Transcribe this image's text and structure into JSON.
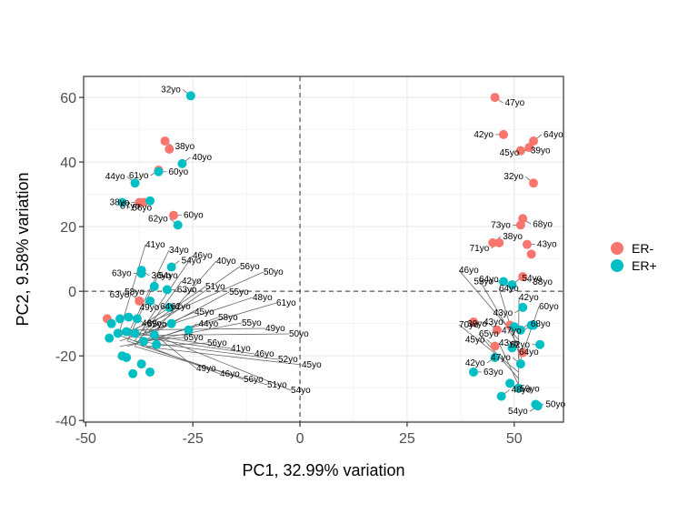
{
  "chart_data": {
    "type": "scatter",
    "xlabel": "PC1, 32.99% variation",
    "ylabel": "PC2, 9.58% variation",
    "xlim": [
      -50.5,
      61.5
    ],
    "ylim": [
      -40.5,
      66.5
    ],
    "xticks": [
      -50,
      -25,
      0,
      25,
      50
    ],
    "yticks": [
      -40,
      -20,
      0,
      20,
      40,
      60
    ],
    "xtick_labels": [
      "-50",
      "-25",
      "0",
      "25",
      "50"
    ],
    "ytick_labels": [
      "-40",
      "-20",
      "0",
      "20",
      "40",
      "60"
    ],
    "reference_lines": {
      "x": 0,
      "y": 0,
      "style": "dashed"
    },
    "grid": true,
    "legend_position": "right",
    "legend": [
      {
        "label": "ER-",
        "color": "#F8766D"
      },
      {
        "label": "ER+",
        "color": "#00BFC4"
      }
    ],
    "points": [
      {
        "x": -25.5,
        "y": 60.5,
        "group": "ER+",
        "label": "32yo"
      },
      {
        "x": -31.5,
        "y": 46.5,
        "group": "ER-",
        "label": "38yo"
      },
      {
        "x": -30.5,
        "y": 44,
        "group": "ER-",
        "label": ""
      },
      {
        "x": -27.5,
        "y": 39.5,
        "group": "ER+",
        "label": "40yo"
      },
      {
        "x": -33,
        "y": 37.5,
        "group": "ER-",
        "label": "61yo"
      },
      {
        "x": -33,
        "y": 37,
        "group": "ER+",
        "label": "60yo"
      },
      {
        "x": -38.5,
        "y": 33.5,
        "group": "ER+",
        "label": "44yo"
      },
      {
        "x": -41.5,
        "y": 27.5,
        "group": "ER+",
        "label": "56yo"
      },
      {
        "x": -37.5,
        "y": 27.5,
        "group": "ER-",
        "label": "38yo"
      },
      {
        "x": -36.5,
        "y": 27.5,
        "group": "ER-",
        "label": ""
      },
      {
        "x": -35,
        "y": 28,
        "group": "ER+",
        "label": "57yo"
      },
      {
        "x": -29.5,
        "y": 23.5,
        "group": "ER-",
        "label": "60yo"
      },
      {
        "x": -28.5,
        "y": 20.5,
        "group": "ER+",
        "label": "62yo"
      },
      {
        "x": -37,
        "y": 6.5,
        "group": "ER+",
        "label": "36yo"
      },
      {
        "x": -37,
        "y": 5.5,
        "group": "ER+",
        "label": "63yo"
      },
      {
        "x": -30,
        "y": 7.5,
        "group": "ER+",
        "label": "54yo"
      },
      {
        "x": -34,
        "y": 1.5,
        "group": "ER+",
        "label": "58yo"
      },
      {
        "x": -31,
        "y": 0.5,
        "group": "ER+",
        "label": "63yo"
      },
      {
        "x": -37.5,
        "y": -3,
        "group": "ER-",
        "label": "63yo"
      },
      {
        "x": -35,
        "y": -3,
        "group": "ER+",
        "label": "64yo"
      },
      {
        "x": -30.5,
        "y": -5,
        "group": "ER+",
        "label": "49yo"
      },
      {
        "x": -45,
        "y": -8.5,
        "group": "ER-",
        "label": ""
      },
      {
        "x": -44,
        "y": -10,
        "group": "ER+",
        "label": ""
      },
      {
        "x": -42,
        "y": -8.5,
        "group": "ER+",
        "label": ""
      },
      {
        "x": -40,
        "y": -8,
        "group": "ER+",
        "label": ""
      },
      {
        "x": -38,
        "y": -8.5,
        "group": "ER+",
        "label": "65yo"
      },
      {
        "x": -30,
        "y": -10,
        "group": "ER+",
        "label": "46yo"
      },
      {
        "x": -26,
        "y": -12,
        "group": "ER+",
        "label": "44yo"
      },
      {
        "x": -34,
        "y": -13.5,
        "group": "ER+",
        "label": ""
      },
      {
        "x": -44.5,
        "y": -14.5,
        "group": "ER+",
        "label": ""
      },
      {
        "x": -42.5,
        "y": -13,
        "group": "ER+",
        "label": ""
      },
      {
        "x": -40.5,
        "y": -12.5,
        "group": "ER+",
        "label": ""
      },
      {
        "x": -38.5,
        "y": -13,
        "group": "ER+",
        "label": ""
      },
      {
        "x": -36.5,
        "y": -15.5,
        "group": "ER+",
        "label": ""
      },
      {
        "x": -33.5,
        "y": -16.5,
        "group": "ER+",
        "label": ""
      },
      {
        "x": -41.5,
        "y": -20,
        "group": "ER+",
        "label": ""
      },
      {
        "x": -40.5,
        "y": -20.5,
        "group": "ER+",
        "label": ""
      },
      {
        "x": -37,
        "y": -22.5,
        "group": "ER+",
        "label": ""
      },
      {
        "x": -39,
        "y": -25.5,
        "group": "ER+",
        "label": ""
      },
      {
        "x": -35,
        "y": -25,
        "group": "ER+",
        "label": ""
      },
      {
        "x": 45.5,
        "y": 60,
        "group": "ER-",
        "label": "47yo"
      },
      {
        "x": 47.5,
        "y": 48.5,
        "group": "ER-",
        "label": "42yo"
      },
      {
        "x": 54.5,
        "y": 46.5,
        "group": "ER-",
        "label": "64yo"
      },
      {
        "x": 53.5,
        "y": 44.5,
        "group": "ER-",
        "label": "45yo"
      },
      {
        "x": 51.5,
        "y": 43.5,
        "group": "ER-",
        "label": "39yo"
      },
      {
        "x": 54.5,
        "y": 33.5,
        "group": "ER-",
        "label": "32yo"
      },
      {
        "x": 52,
        "y": 22.5,
        "group": "ER-",
        "label": "68yo"
      },
      {
        "x": 51.5,
        "y": 20.5,
        "group": "ER-",
        "label": "73yo"
      },
      {
        "x": 45,
        "y": 15,
        "group": "ER-",
        "label": "38yo"
      },
      {
        "x": 46.5,
        "y": 15,
        "group": "ER-",
        "label": "71yo"
      },
      {
        "x": 53,
        "y": 14.5,
        "group": "ER-",
        "label": "43yo"
      },
      {
        "x": 54,
        "y": 11.5,
        "group": "ER-",
        "label": ""
      },
      {
        "x": 52,
        "y": 4.5,
        "group": "ER-",
        "label": "38yo"
      },
      {
        "x": 47.5,
        "y": 3,
        "group": "ER+",
        "label": "55yo"
      },
      {
        "x": 49.5,
        "y": 2,
        "group": "ER+",
        "label": "54yo"
      },
      {
        "x": 52,
        "y": -5,
        "group": "ER+",
        "label": "43yo"
      },
      {
        "x": 40.5,
        "y": -9.5,
        "group": "ER-",
        "label": "43yo"
      },
      {
        "x": 46,
        "y": -12,
        "group": "ER-",
        "label": "39yo"
      },
      {
        "x": 49,
        "y": -10.5,
        "group": "ER-",
        "label": ""
      },
      {
        "x": 50,
        "y": -11,
        "group": "ER+",
        "label": ""
      },
      {
        "x": 51.5,
        "y": -12,
        "group": "ER+",
        "label": "68yo"
      },
      {
        "x": 54,
        "y": -10.5,
        "group": "ER+",
        "label": "47yo"
      },
      {
        "x": 54.5,
        "y": -10.5,
        "group": "ER+",
        "label": ""
      },
      {
        "x": 45.5,
        "y": -17,
        "group": "ER-",
        "label": "45yo"
      },
      {
        "x": 49.5,
        "y": -17.5,
        "group": "ER+",
        "label": ""
      },
      {
        "x": 56,
        "y": -16.5,
        "group": "ER+",
        "label": "82yo"
      },
      {
        "x": 52,
        "y": -19,
        "group": "ER-",
        "label": ""
      },
      {
        "x": 45.5,
        "y": -20.5,
        "group": "ER+",
        "label": "42yo"
      },
      {
        "x": 40.5,
        "y": -25,
        "group": "ER+",
        "label": "63yo"
      },
      {
        "x": 51.5,
        "y": -22.5,
        "group": "ER+",
        "label": "47yo"
      },
      {
        "x": 49,
        "y": -28.5,
        "group": "ER+",
        "label": "59yo"
      },
      {
        "x": 51,
        "y": -30,
        "group": "ER+",
        "label": ""
      },
      {
        "x": 47,
        "y": -32.5,
        "group": "ER+",
        "label": "48yo"
      },
      {
        "x": 55.5,
        "y": -35.5,
        "group": "ER+",
        "label": "54yo"
      },
      {
        "x": 55,
        "y": -35,
        "group": "ER+",
        "label": "50yo"
      }
    ],
    "extra_labels": [
      "41yo",
      "34yo",
      "46yo",
      "40yo",
      "56yo",
      "50yo",
      "54yo",
      "42yo",
      "51yo",
      "55yo",
      "48yo",
      "61yo",
      "62yo",
      "45yo",
      "58yo",
      "55yo",
      "49yo",
      "50yo",
      "65yo",
      "56yo",
      "41yo",
      "46yo",
      "52yo",
      "45yo",
      "49yo",
      "46yo",
      "56yo",
      "51yo",
      "54yo",
      "46yo",
      "64yo",
      "64yo",
      "42yo",
      "60yo",
      "70yo",
      "65yo",
      "43yo",
      "64yo"
    ]
  }
}
